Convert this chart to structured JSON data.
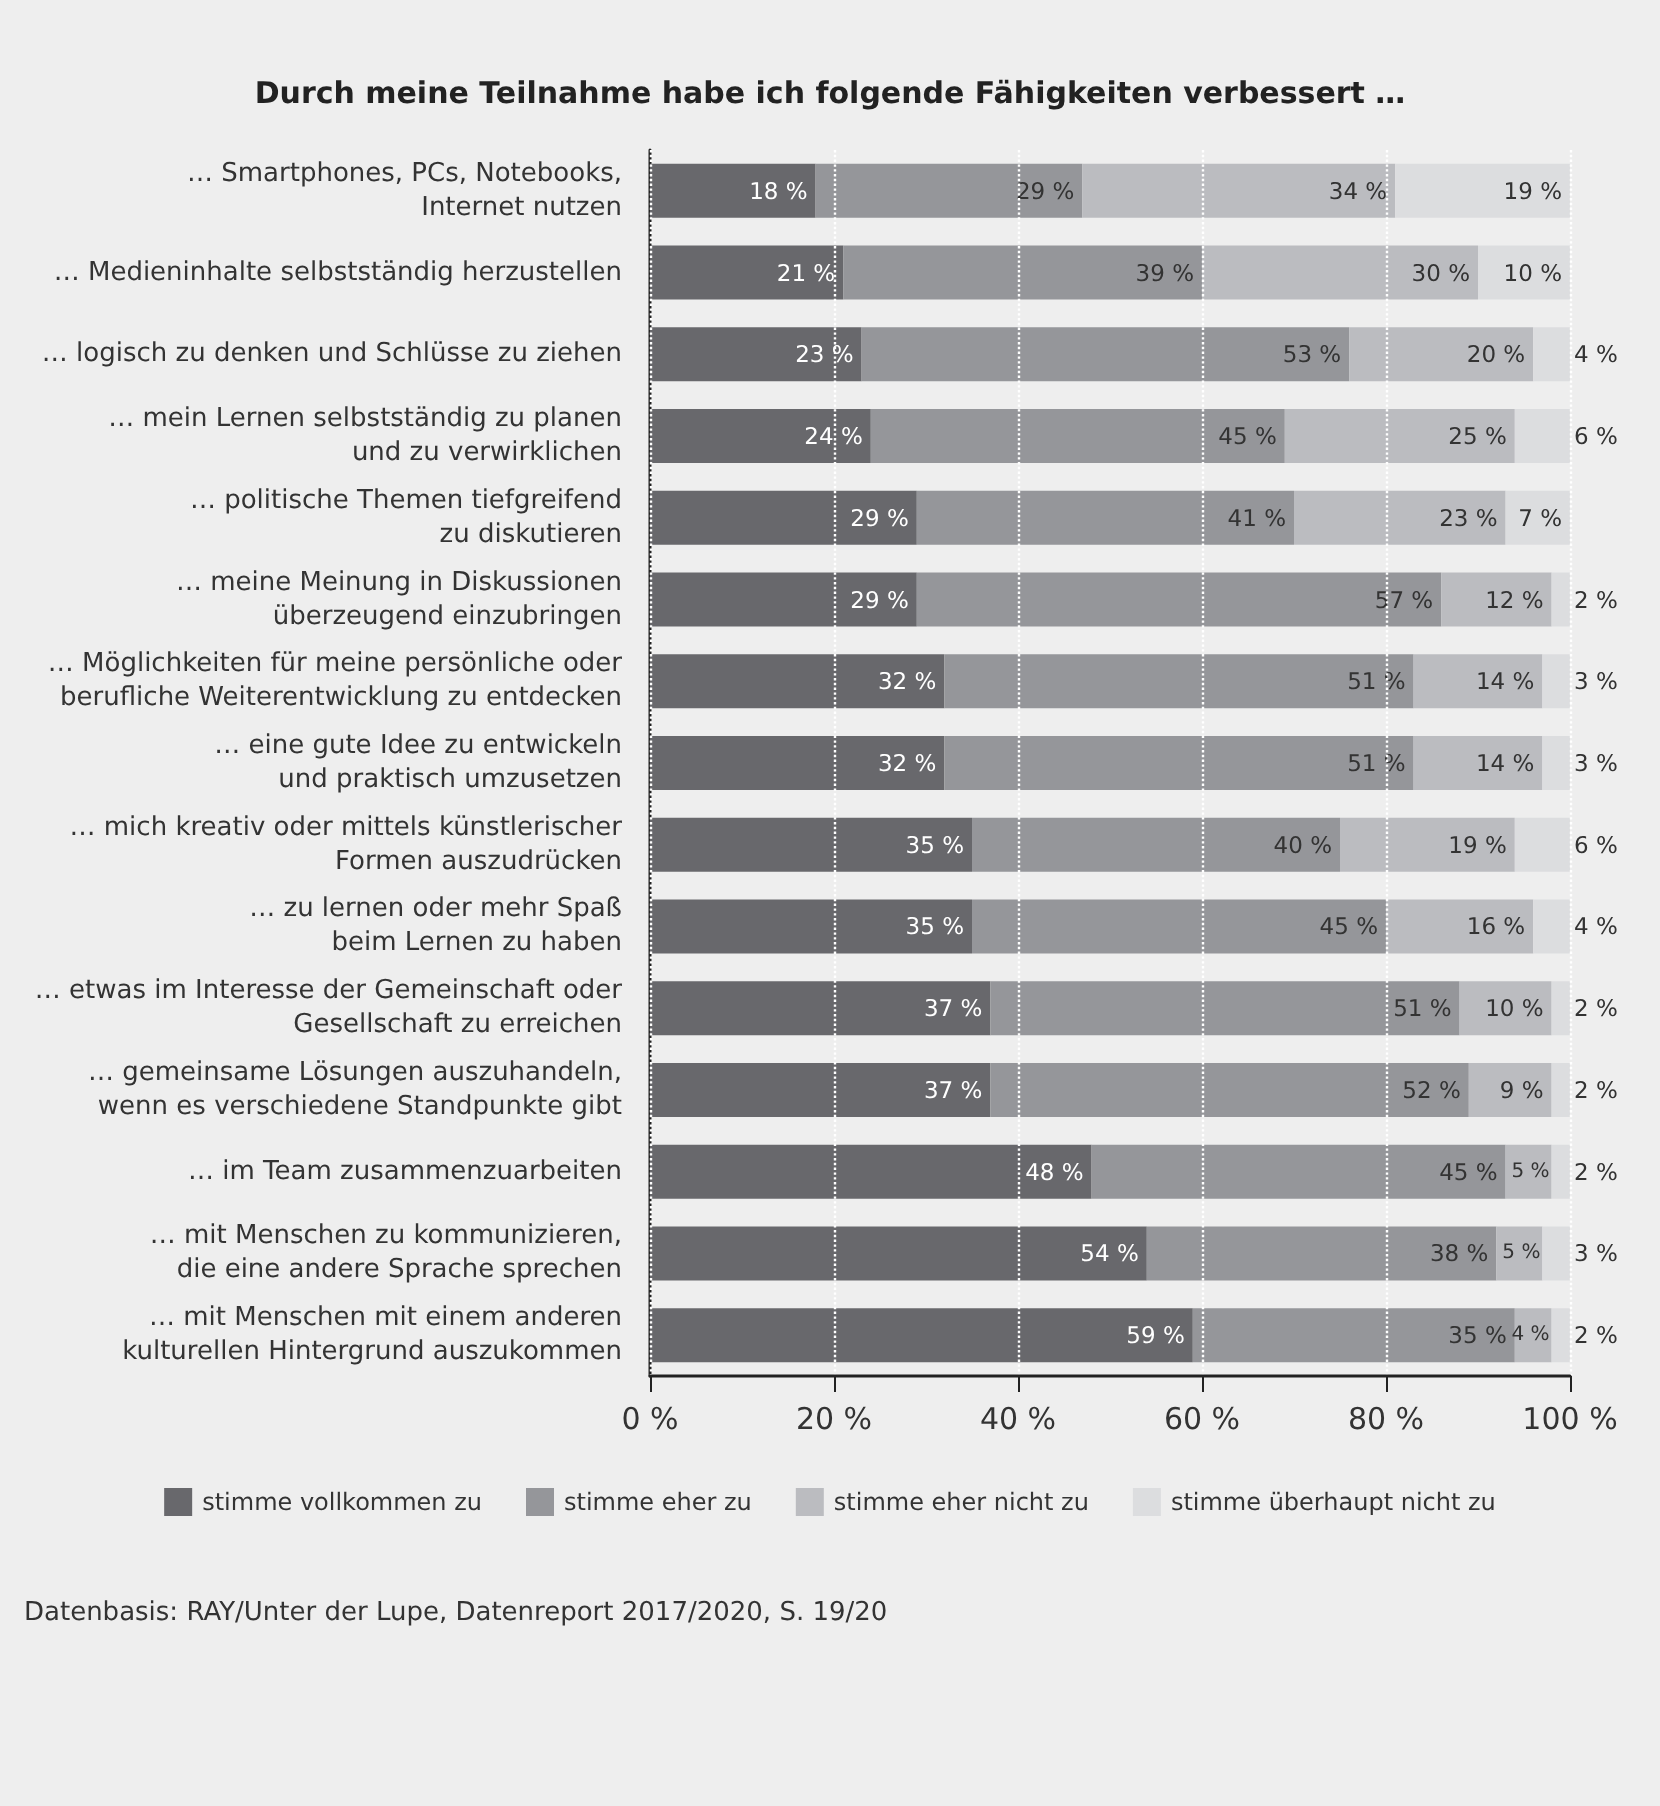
{
  "chart_data": {
    "type": "bar",
    "orientation": "horizontal",
    "stacked": true,
    "title": "Durch meine Teilnahme habe ich folgende Fähigkeiten verbessert …",
    "categories": [
      "… Smartphones, PCs, Notebooks,\nInternet nutzen",
      "… Medieninhalte selbstständig herzustellen",
      "… logisch zu denken und Schlüsse zu ziehen",
      "… mein Lernen selbstständig zu planen\nund zu verwirklichen",
      "… politische Themen tiefgreifend\nzu diskutieren",
      "… meine Meinung in Diskussionen\nüberzeugend einzubringen",
      "… Möglichkeiten für meine persönliche oder\nberufliche Weiterentwicklung zu entdecken",
      "… eine gute Idee zu entwickeln\nund praktisch umzusetzen",
      "… mich kreativ oder mittels künstlerischer\nFormen auszudrücken",
      "… zu lernen oder mehr Spaß\nbeim Lernen zu haben",
      "… etwas im Interesse der Gemeinschaft oder\nGesellschaft zu erreichen",
      "… gemeinsame Lösungen auszuhandeln,\nwenn es verschiedene Standpunkte gibt",
      "… im Team zusammenzuarbeiten",
      "… mit Menschen zu kommunizieren,\ndie eine andere Sprache sprechen",
      "… mit Menschen mit einem anderen\nkulturellen Hintergrund auszukommen"
    ],
    "series": [
      {
        "name": "stimme vollkommen zu",
        "color": "#68686c",
        "values": [
          18,
          21,
          23,
          24,
          29,
          29,
          32,
          32,
          35,
          35,
          37,
          37,
          48,
          54,
          59
        ],
        "value_labels": [
          "18 %",
          "21 %",
          "23 %",
          "24 %",
          "29 %",
          "29 %",
          "32 %",
          "32 %",
          "35 %",
          "35 %",
          "37 %",
          "37 %",
          "48 %",
          "54 %",
          "59 %"
        ]
      },
      {
        "name": "stimme eher zu",
        "color": "#95969a",
        "values": [
          29,
          39,
          53,
          45,
          41,
          57,
          51,
          51,
          40,
          45,
          51,
          52,
          45,
          38,
          35
        ],
        "value_labels": [
          "29 %",
          "39 %",
          "53 %",
          "45 %",
          "41 %",
          "57 %",
          "51 %",
          "51 %",
          "40 %",
          "45 %",
          "51 %",
          "52 %",
          "45 %",
          "38 %",
          "35 %"
        ]
      },
      {
        "name": "stimme eher nicht zu",
        "color": "#bbbcc0",
        "values": [
          34,
          30,
          20,
          25,
          23,
          12,
          14,
          14,
          19,
          16,
          10,
          9,
          5,
          5,
          4
        ],
        "value_labels": [
          "34 %",
          "30 %",
          "20 %",
          "25 %",
          "23 %",
          "12 %",
          "14 %",
          "14 %",
          "19 %",
          "16 %",
          "10 %",
          "9 %",
          "5 %",
          "5 %",
          "4 %"
        ]
      },
      {
        "name": "stimme überhaupt nicht zu",
        "color": "#dcdddf",
        "values": [
          19,
          10,
          4,
          6,
          7,
          2,
          3,
          3,
          6,
          4,
          2,
          2,
          2,
          3,
          2
        ],
        "value_labels": [
          "19 %",
          "10 %",
          "4 %",
          "6 %",
          "7 %",
          "2 %",
          "3 %",
          "3 %",
          "6 %",
          "4 %",
          "2 %",
          "2 %",
          "2 %",
          "3 %",
          "2 %"
        ]
      }
    ],
    "xlim": [
      0,
      100
    ],
    "xticks": [
      {
        "value": 0,
        "label": "0 %"
      },
      {
        "value": 20,
        "label": "20 %"
      },
      {
        "value": 40,
        "label": "40 %"
      },
      {
        "value": 60,
        "label": "60 %"
      },
      {
        "value": 80,
        "label": "80 %"
      },
      {
        "value": 100,
        "label": "100 %"
      }
    ],
    "grid": "x",
    "legend": "bottom",
    "annotations": [
      "Datenbasis: RAY/Unter der Lupe, Datenreport 2017/2020, S. 19/20"
    ]
  }
}
